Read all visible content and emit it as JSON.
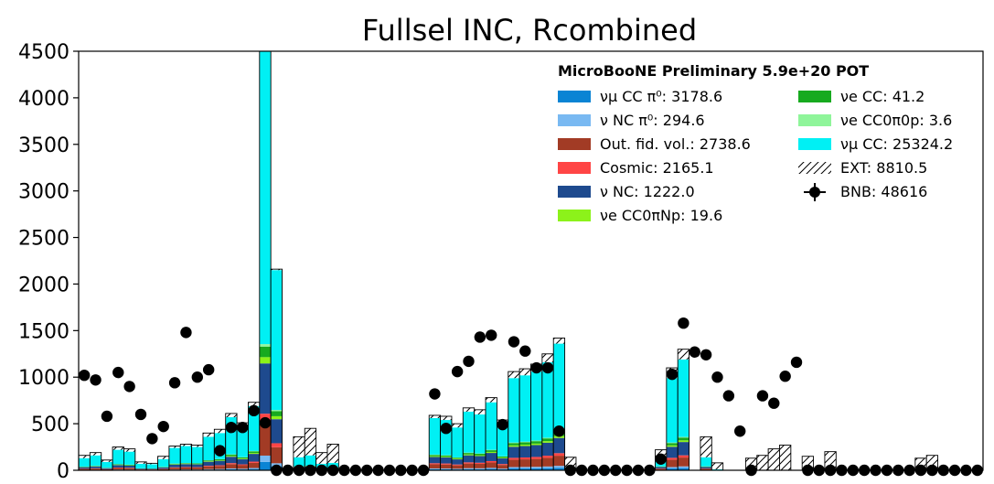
{
  "chart_data": {
    "type": "bar",
    "stacked": true,
    "title": "Fullsel INC, Rcombined",
    "xlabel": "",
    "ylabel": "",
    "ylim": [
      0,
      4500
    ],
    "yticks": [
      0,
      500,
      1000,
      1500,
      2000,
      2500,
      3000,
      3500,
      4000,
      4500
    ],
    "n_bins": 80,
    "legend_title": "MicroBooNE Preliminary 5.9e+20 POT",
    "legend_position": "top-right",
    "legend": [
      {
        "key": "numu_cc_pi0",
        "label": "νμ CC π⁰: 3178.6",
        "color": "#0a84d4",
        "style": "fill"
      },
      {
        "key": "nu_nc_pi0",
        "label": "ν NC π⁰: 294.6",
        "color": "#79b9f2",
        "style": "fill"
      },
      {
        "key": "out_fid",
        "label": "Out. fid. vol.: 2738.6",
        "color": "#a23b25",
        "style": "fill"
      },
      {
        "key": "cosmic",
        "label": "Cosmic: 2165.1",
        "color": "#ff4545",
        "style": "fill"
      },
      {
        "key": "nu_nc",
        "label": "ν NC: 1222.0",
        "color": "#1e4a8e",
        "style": "fill"
      },
      {
        "key": "nue_cc0pinp",
        "label": "νe CC0πNp: 19.6",
        "color": "#8cf21a",
        "style": "fill"
      },
      {
        "key": "nue_cc",
        "label": "νe CC: 41.2",
        "color": "#17aa1f",
        "style": "fill"
      },
      {
        "key": "nue_cc0pi0p",
        "label": "νe CC0π0p: 3.6",
        "color": "#8ff59a",
        "style": "fill"
      },
      {
        "key": "numu_cc",
        "label": "νμ CC: 25324.2",
        "color": "#00f0f4",
        "style": "fill"
      },
      {
        "key": "ext",
        "label": "EXT: 8810.5",
        "color": "#ffffff",
        "style": "hatch"
      },
      {
        "key": "bnb",
        "label": "BNB: 48616",
        "color": "#000000",
        "style": "marker"
      }
    ],
    "mc_totals": [
      160,
      190,
      110,
      250,
      230,
      90,
      75,
      150,
      260,
      280,
      270,
      400,
      440,
      610,
      510,
      730,
      4500,
      2160,
      0,
      360,
      450,
      190,
      280,
      0,
      0,
      0,
      0,
      0,
      0,
      0,
      0,
      590,
      580,
      500,
      670,
      650,
      780,
      540,
      1060,
      1090,
      1140,
      1250,
      1420,
      140,
      0,
      0,
      0,
      0,
      0,
      0,
      0,
      220,
      1100,
      1300,
      0,
      360,
      80,
      0,
      0,
      130,
      160,
      230,
      270,
      0,
      150,
      0,
      200,
      0,
      0,
      0,
      0,
      0,
      0,
      0,
      130,
      160,
      0,
      0,
      0,
      0
    ],
    "ext_values": [
      30,
      30,
      20,
      30,
      30,
      20,
      10,
      30,
      20,
      20,
      20,
      40,
      40,
      40,
      40,
      40,
      0,
      10,
      0,
      220,
      290,
      120,
      200,
      0,
      0,
      0,
      0,
      0,
      0,
      0,
      0,
      30,
      40,
      40,
      40,
      50,
      50,
      40,
      70,
      70,
      80,
      90,
      60,
      110,
      0,
      0,
      0,
      0,
      0,
      0,
      0,
      80,
      110,
      110,
      0,
      220,
      70,
      0,
      0,
      130,
      160,
      230,
      270,
      0,
      150,
      0,
      200,
      0,
      0,
      0,
      0,
      0,
      0,
      0,
      130,
      160,
      0,
      0,
      0,
      0
    ],
    "bottom_fraction": [
      0.02,
      0.015,
      0.08,
      0.02,
      0.12,
      0.015,
      0.025,
      0.006,
      0.045,
      0.005
    ],
    "bnb_data": [
      {
        "x": 0.5,
        "y": 1020
      },
      {
        "x": 1.5,
        "y": 970
      },
      {
        "x": 2.5,
        "y": 580
      },
      {
        "x": 3.5,
        "y": 1050
      },
      {
        "x": 4.5,
        "y": 900
      },
      {
        "x": 5.5,
        "y": 600
      },
      {
        "x": 6.5,
        "y": 340
      },
      {
        "x": 7.5,
        "y": 470
      },
      {
        "x": 8.5,
        "y": 940
      },
      {
        "x": 9.5,
        "y": 1480
      },
      {
        "x": 10.5,
        "y": 1000
      },
      {
        "x": 11.5,
        "y": 1080
      },
      {
        "x": 12.5,
        "y": 210
      },
      {
        "x": 13.5,
        "y": 460
      },
      {
        "x": 14.5,
        "y": 460
      },
      {
        "x": 15.5,
        "y": 640
      },
      {
        "x": 16.5,
        "y": 510
      },
      {
        "x": 17.5,
        "y": 0
      },
      {
        "x": 18.5,
        "y": 0
      },
      {
        "x": 19.5,
        "y": 0
      },
      {
        "x": 20.5,
        "y": 0
      },
      {
        "x": 21.5,
        "y": 0
      },
      {
        "x": 22.5,
        "y": 0
      },
      {
        "x": 23.5,
        "y": 0
      },
      {
        "x": 24.5,
        "y": 0
      },
      {
        "x": 25.5,
        "y": 0
      },
      {
        "x": 26.5,
        "y": 0
      },
      {
        "x": 27.5,
        "y": 0
      },
      {
        "x": 28.5,
        "y": 0
      },
      {
        "x": 29.5,
        "y": 0
      },
      {
        "x": 30.5,
        "y": 0
      },
      {
        "x": 31.5,
        "y": 820
      },
      {
        "x": 32.5,
        "y": 450
      },
      {
        "x": 33.5,
        "y": 1060
      },
      {
        "x": 34.5,
        "y": 1170
      },
      {
        "x": 35.5,
        "y": 1430
      },
      {
        "x": 36.5,
        "y": 1450
      },
      {
        "x": 37.5,
        "y": 490
      },
      {
        "x": 38.5,
        "y": 1380
      },
      {
        "x": 39.5,
        "y": 1280
      },
      {
        "x": 40.5,
        "y": 1100
      },
      {
        "x": 41.5,
        "y": 1100
      },
      {
        "x": 42.5,
        "y": 420
      },
      {
        "x": 43.5,
        "y": 0
      },
      {
        "x": 44.5,
        "y": 0
      },
      {
        "x": 45.5,
        "y": 0
      },
      {
        "x": 46.5,
        "y": 0
      },
      {
        "x": 47.5,
        "y": 0
      },
      {
        "x": 48.5,
        "y": 0
      },
      {
        "x": 49.5,
        "y": 0
      },
      {
        "x": 50.5,
        "y": 0
      },
      {
        "x": 51.5,
        "y": 120
      },
      {
        "x": 52.5,
        "y": 1030
      },
      {
        "x": 53.5,
        "y": 1580
      },
      {
        "x": 54.5,
        "y": 1270
      },
      {
        "x": 55.5,
        "y": 1240
      },
      {
        "x": 56.5,
        "y": 1000
      },
      {
        "x": 57.5,
        "y": 800
      },
      {
        "x": 58.5,
        "y": 420
      },
      {
        "x": 59.5,
        "y": 0
      },
      {
        "x": 60.5,
        "y": 800
      },
      {
        "x": 61.5,
        "y": 720
      },
      {
        "x": 62.5,
        "y": 1010
      },
      {
        "x": 63.5,
        "y": 1160
      },
      {
        "x": 64.5,
        "y": 0
      },
      {
        "x": 65.5,
        "y": 0
      },
      {
        "x": 66.5,
        "y": 0
      },
      {
        "x": 67.5,
        "y": 0
      },
      {
        "x": 68.5,
        "y": 0
      },
      {
        "x": 69.5,
        "y": 0
      },
      {
        "x": 70.5,
        "y": 0
      },
      {
        "x": 71.5,
        "y": 0
      },
      {
        "x": 72.5,
        "y": 0
      },
      {
        "x": 73.5,
        "y": 0
      },
      {
        "x": 74.5,
        "y": 0
      },
      {
        "x": 75.5,
        "y": 0
      },
      {
        "x": 76.5,
        "y": 0
      },
      {
        "x": 77.5,
        "y": 0
      },
      {
        "x": 78.5,
        "y": 0
      },
      {
        "x": 79.5,
        "y": 0
      }
    ]
  }
}
